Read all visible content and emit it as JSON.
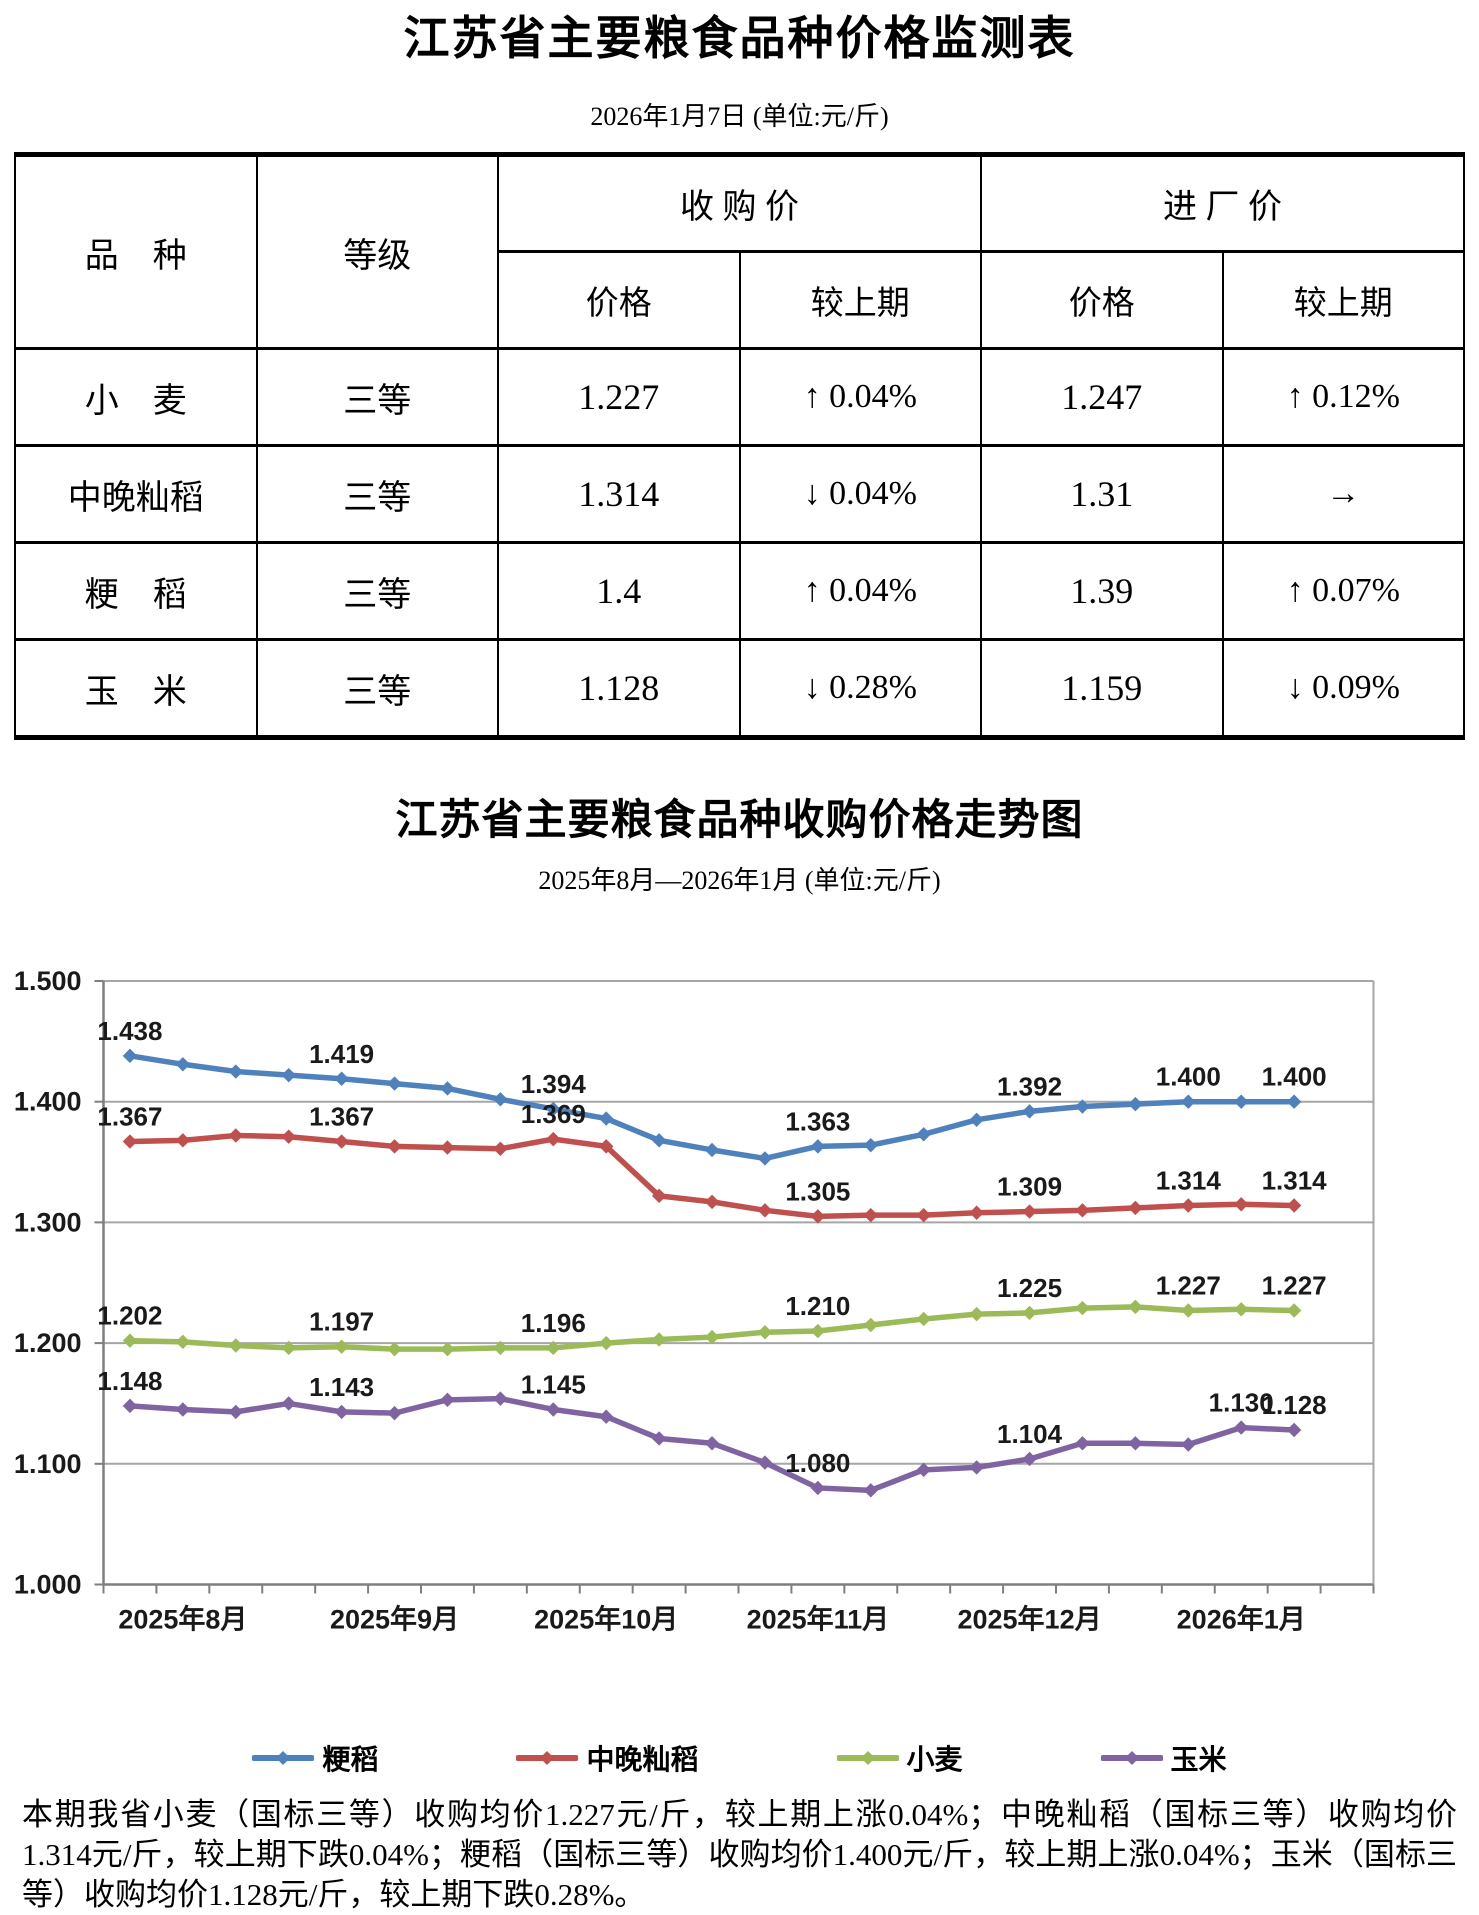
{
  "page": {
    "table_title": "江苏省主要粮食品种价格监测表",
    "table_date": "2026年1月7日 (单位:元/斤)",
    "chart_title": "江苏省主要粮食品种收购价格走势图",
    "chart_subtitle": "2025年8月—2026年1月 (单位:元/斤)"
  },
  "price_table": {
    "col_headers": {
      "variety": "品　种",
      "grade": "等级",
      "purchase_group": "收 购 价",
      "factory_group": "进 厂 价",
      "price": "价格",
      "vs_prev": "较上期"
    },
    "rows": [
      {
        "variety": "小　麦",
        "grade": "三等",
        "purchase_price": "1.227",
        "purchase_change": "↑ 0.04%",
        "factory_price": "1.247",
        "factory_change": "↑ 0.12%"
      },
      {
        "variety": "中晚籼稻",
        "grade": "三等",
        "purchase_price": "1.314",
        "purchase_change": "↓ 0.04%",
        "factory_price": "1.31",
        "factory_change": "→"
      },
      {
        "variety": "粳　稻",
        "grade": "三等",
        "purchase_price": "1.4",
        "purchase_change": "↑ 0.04%",
        "factory_price": "1.39",
        "factory_change": "↑ 0.07%"
      },
      {
        "variety": "玉　米",
        "grade": "三等",
        "purchase_price": "1.128",
        "purchase_change": "↓ 0.28%",
        "factory_price": "1.159",
        "factory_change": "↓ 0.09%"
      }
    ]
  },
  "chart_data": {
    "type": "line",
    "title": "江苏省主要粮食品种收购价格走势图",
    "subtitle": "2025年8月—2026年1月 (单位:元/斤)",
    "ylabel": "",
    "xlabel": "",
    "ylim": [
      1.0,
      1.5
    ],
    "y_ticks": [
      "1.500",
      "1.400",
      "1.300",
      "1.200",
      "1.100",
      "1.000"
    ],
    "x_month_labels": [
      "2025年8月",
      "2025年9月",
      "2025年10月",
      "2025年11月",
      "2025年12月",
      "2026年1月"
    ],
    "points_per_series": 23,
    "grid": true,
    "legend_position": "bottom",
    "axis_color": "#7f7f7f",
    "grid_color": "#a6a6a6",
    "series": [
      {
        "name": "粳稻",
        "key": "jingdao",
        "color": "#4F81BD",
        "values": [
          1.438,
          1.431,
          1.425,
          1.422,
          1.419,
          1.415,
          1.411,
          1.402,
          1.394,
          1.386,
          1.368,
          1.36,
          1.353,
          1.363,
          1.364,
          1.373,
          1.385,
          1.392,
          1.396,
          1.398,
          1.4,
          1.4,
          1.4
        ],
        "point_labels": {
          "0": "1.438",
          "4": "1.419",
          "8": "1.394",
          "13": "1.363",
          "17": "1.392",
          "20": "1.400",
          "22": "1.400"
        }
      },
      {
        "name": "中晚籼稻",
        "key": "zhongwanxiandao",
        "color": "#C0504D",
        "values": [
          1.367,
          1.368,
          1.372,
          1.371,
          1.367,
          1.363,
          1.362,
          1.361,
          1.369,
          1.363,
          1.322,
          1.317,
          1.31,
          1.305,
          1.306,
          1.306,
          1.308,
          1.309,
          1.31,
          1.312,
          1.314,
          1.315,
          1.314
        ],
        "point_labels": {
          "0": "1.367",
          "4": "1.367",
          "8": "1.369",
          "13": "1.305",
          "17": "1.309",
          "20": "1.314",
          "22": "1.314"
        }
      },
      {
        "name": "小麦",
        "key": "xiaomai",
        "color": "#9BBB59",
        "values": [
          1.202,
          1.201,
          1.198,
          1.196,
          1.197,
          1.195,
          1.195,
          1.196,
          1.196,
          1.2,
          1.203,
          1.205,
          1.209,
          1.21,
          1.215,
          1.22,
          1.224,
          1.225,
          1.229,
          1.23,
          1.227,
          1.228,
          1.227
        ],
        "point_labels": {
          "0": "1.202",
          "4": "1.197",
          "8": "1.196",
          "13": "1.210",
          "17": "1.225",
          "20": "1.227",
          "22": "1.227"
        }
      },
      {
        "name": "玉米",
        "key": "yumi",
        "color": "#8064A2",
        "values": [
          1.148,
          1.145,
          1.143,
          1.15,
          1.143,
          1.142,
          1.153,
          1.154,
          1.145,
          1.139,
          1.121,
          1.117,
          1.101,
          1.08,
          1.078,
          1.095,
          1.097,
          1.104,
          1.117,
          1.117,
          1.116,
          1.13,
          1.128
        ],
        "point_labels": {
          "0": "1.148",
          "4": "1.143",
          "8": "1.145",
          "13": "1.080",
          "17": "1.104",
          "21": "1.130",
          "22": "1.128"
        }
      }
    ]
  },
  "footer": {
    "text": "本期我省小麦（国标三等）收购均价1.227元/斤，较上期上涨0.04%；中晚籼稻（国标三等）收购均价1.314元/斤，较上期下跌0.04%；粳稻（国标三等）收购均价1.400元/斤，较上期上涨0.04%；玉米（国标三等）收购均价1.128元/斤，较上期下跌0.28%。"
  }
}
